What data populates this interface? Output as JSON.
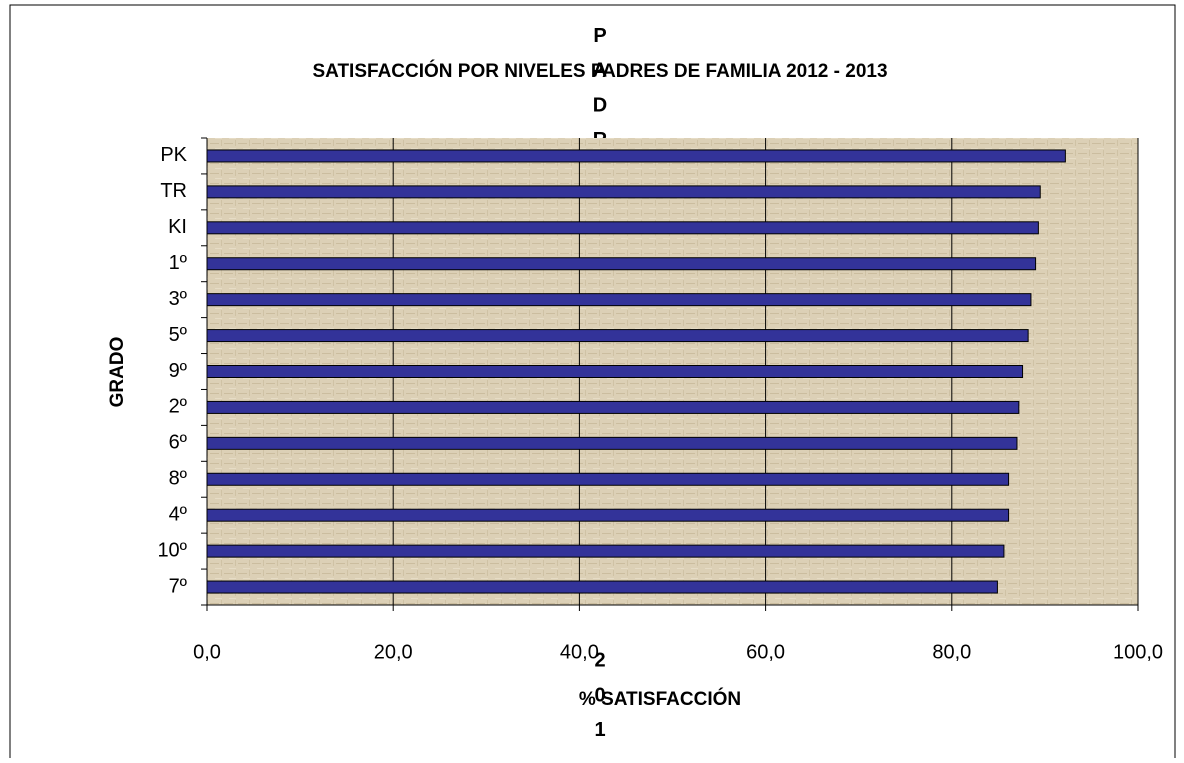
{
  "chart_data": {
    "type": "barh",
    "title": "SATISFACCIÓN POR NIVELES PADRES DE FAMILIA 2012 - 2013",
    "series_label": "PADRES DE FAMILIA 201",
    "y_label": "GRADO",
    "x_label": "% SATISFACCIÓN",
    "categories": [
      "PK",
      "TR",
      "KI",
      "1º",
      "3º",
      "5º",
      "9º",
      "2º",
      "6º",
      "8º",
      "4º",
      "10º",
      "7º"
    ],
    "values": [
      92.2,
      89.5,
      89.3,
      89.0,
      88.5,
      88.2,
      87.6,
      87.2,
      87.0,
      86.1,
      86.1,
      85.6,
      84.9
    ],
    "color": "#333399",
    "xlim": [
      0,
      100
    ],
    "xticks": [
      {
        "value": 0,
        "label": "0,0"
      },
      {
        "value": 20,
        "label": "20,0"
      },
      {
        "value": 40,
        "label": "40,0"
      },
      {
        "value": 60,
        "label": "60,0"
      },
      {
        "value": 80,
        "label": "80,0"
      },
      {
        "value": 100,
        "label": "100,0"
      }
    ],
    "grid": true
  }
}
